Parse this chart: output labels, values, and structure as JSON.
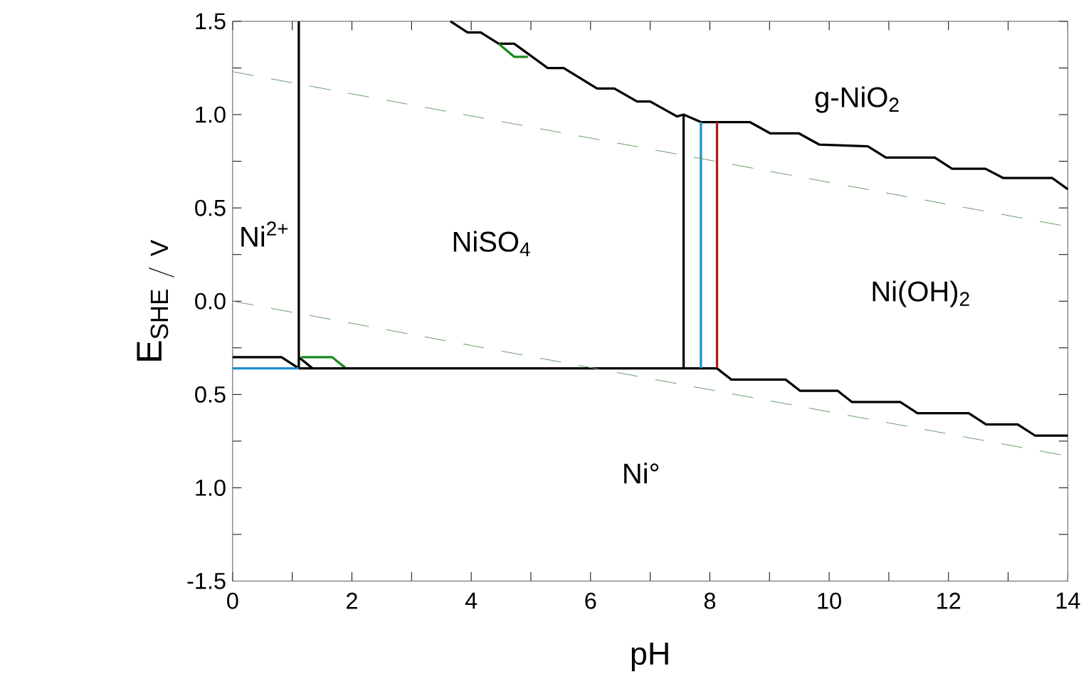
{
  "chart_data": {
    "type": "line",
    "xlabel": "pH",
    "ylabel": "\\mathrm{E}_{\\mathrm{SHE\\ /\\ V}}",
    "xlim": [
      0,
      14
    ],
    "ylim": [
      -1.5,
      1.5
    ],
    "xticks": [
      0,
      {
        "value": 1,
        "label": null
      },
      2,
      {
        "value": 3,
        "label": null
      },
      4,
      {
        "value": 5,
        "label": null
      },
      6,
      {
        "value": 7,
        "label": null
      },
      8,
      {
        "value": 9,
        "label": null
      },
      10,
      {
        "value": 11,
        "label": null
      },
      12,
      {
        "value": 13,
        "label": null
      },
      14
    ],
    "yticks": [
      {
        "value": -1.5,
        "label": "-1.5"
      },
      {
        "value": -1.25,
        "label": null
      },
      {
        "value": -1.0,
        "label": "1.0"
      },
      {
        "value": -0.75,
        "label": null
      },
      {
        "value": -0.5,
        "label": "0.5"
      },
      {
        "value": -0.25,
        "label": null
      },
      {
        "value": 0.0,
        "label": "0.0"
      },
      {
        "value": 0.25,
        "label": null
      },
      {
        "value": 0.5,
        "label": "0.5"
      },
      {
        "value": 0.75,
        "label": null
      },
      {
        "value": 1.0,
        "label": "1.0"
      },
      {
        "value": 1.25,
        "label": null
      },
      {
        "value": 1.5,
        "label": "1.5"
      }
    ],
    "grid": false,
    "marker": "none",
    "line_style": "solid",
    "series": [
      {
        "color": "#000000",
        "x": [
          1.11,
          1.11
        ],
        "values": [
          -0.36,
          1.5
        ]
      },
      {
        "color": "#000000",
        "x": [
          0,
          0.82,
          1.11
        ],
        "values": [
          -0.3,
          -0.3,
          -0.36
        ]
      },
      {
        "color": "#000000",
        "x": [
          1.11,
          1.34
        ],
        "values": [
          -0.3,
          -0.36
        ]
      },
      {
        "color": "#1f8fd0",
        "x": [
          0,
          1.11
        ],
        "values": [
          -0.36,
          -0.36
        ]
      },
      {
        "color": "#1a8a1a",
        "x": [
          1.15,
          1.67,
          1.9
        ],
        "values": [
          -0.3,
          -0.3,
          -0.36
        ]
      },
      {
        "color": "#000000",
        "x": [
          1.11,
          8.12
        ],
        "values": [
          -0.36,
          -0.36
        ]
      },
      {
        "color": "#000000",
        "x": [
          3.65,
          3.94,
          4.16,
          4.46,
          4.72,
          5.28,
          5.55,
          6.11,
          6.4,
          6.78,
          7.0,
          7.45,
          7.56,
          7.85,
          8.67,
          9.01,
          9.49,
          9.83,
          10.65,
          10.95,
          11.77,
          12.06,
          12.62,
          12.92,
          13.74,
          14.0
        ],
        "values": [
          1.5,
          1.44,
          1.44,
          1.38,
          1.38,
          1.25,
          1.25,
          1.14,
          1.14,
          1.07,
          1.07,
          0.99,
          1.0,
          0.96,
          0.96,
          0.9,
          0.9,
          0.84,
          0.83,
          0.77,
          0.77,
          0.71,
          0.71,
          0.66,
          0.66,
          0.6
        ]
      },
      {
        "color": "#1a8a1a",
        "x": [
          4.46,
          4.72,
          4.95
        ],
        "values": [
          1.38,
          1.31,
          1.31
        ]
      },
      {
        "color": "#000000",
        "x": [
          7.56,
          7.56
        ],
        "values": [
          -0.36,
          1.0
        ]
      },
      {
        "color": "#1f8fd0",
        "x": [
          7.85,
          7.85
        ],
        "values": [
          -0.36,
          0.96
        ]
      },
      {
        "color": "#b01818",
        "x": [
          8.12,
          8.12
        ],
        "values": [
          -0.36,
          0.96
        ]
      },
      {
        "color": "#000000",
        "x": [
          8.12,
          8.36,
          9.27,
          9.51,
          10.14,
          10.38,
          11.19,
          11.48,
          12.34,
          12.63,
          13.16,
          13.45,
          14.0
        ],
        "values": [
          -0.36,
          -0.42,
          -0.42,
          -0.48,
          -0.48,
          -0.54,
          -0.54,
          -0.6,
          -0.6,
          -0.66,
          -0.66,
          -0.72,
          -0.72
        ]
      },
      {
        "color": "#6a9a6a",
        "line_style": "dashed",
        "x": [
          0,
          14
        ],
        "values": [
          1.23,
          0.4
        ]
      },
      {
        "color": "#6a9a6a",
        "line_style": "dashed",
        "x": [
          0,
          14
        ],
        "values": [
          0.0,
          -0.83
        ]
      }
    ],
    "annotations": [
      "Ni$^{2+}$",
      "NiSO$_{4}$",
      "g-NiO$_{2}$",
      "Ni(OH)$_{2}$",
      "Ni°"
    ]
  }
}
